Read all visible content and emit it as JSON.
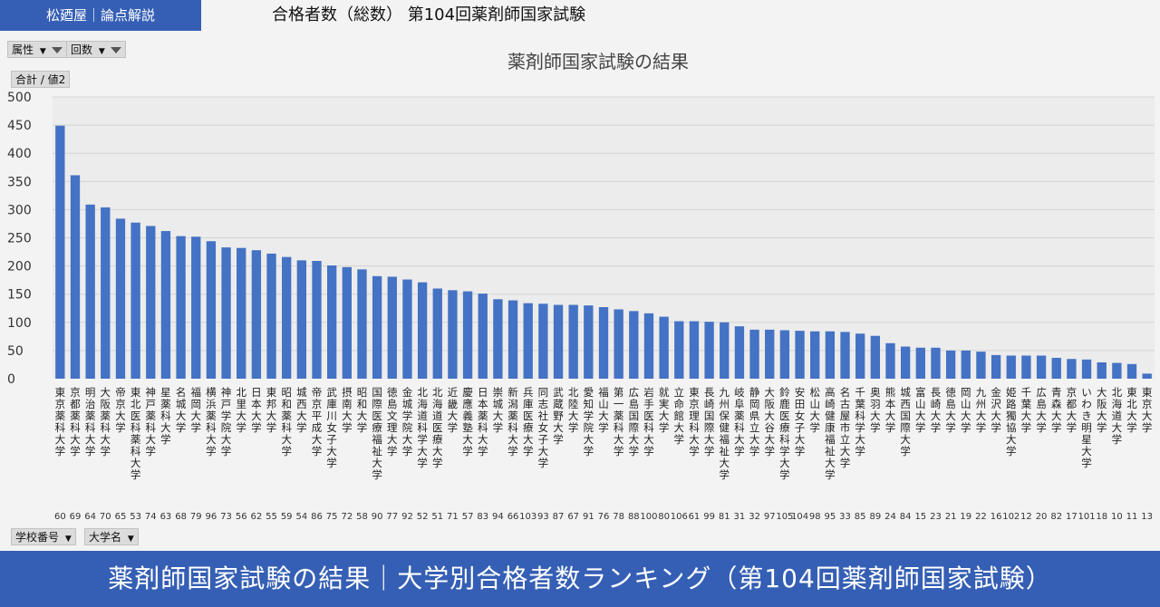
{
  "header": {
    "brand": "松廼屋｜論点解説",
    "title": "合格者数（総数） 第104回薬剤師国家試験"
  },
  "filters": {
    "attribute": "属性",
    "count": "回数",
    "sum_label": "合計 / 値2",
    "school_number": "学校番号",
    "university_name": "大学名"
  },
  "footer": {
    "text": "薬剤師国家試験の結果｜大学別合格者数ランキング（第104回薬剤師国家試験）"
  },
  "colors": {
    "bar": "#4472c4",
    "brand": "#355fb4"
  },
  "chart_data": {
    "type": "bar",
    "title": "薬剤師国家試験の結果",
    "ylim": [
      0,
      500
    ],
    "yticks": [
      0,
      50,
      100,
      150,
      200,
      250,
      300,
      350,
      400,
      450,
      500
    ],
    "grid": true,
    "categories": [
      "東京薬科大学",
      "京都薬科大学",
      "明治薬科大学",
      "大阪薬科大学",
      "帝京大学",
      "東北医科薬科大学",
      "神戸薬科大学",
      "星薬科大学",
      "名城大学",
      "福岡大学",
      "横浜薬科大学",
      "神戸学院大学",
      "北里大学",
      "日本大学",
      "東邦大学",
      "昭和薬科大学",
      "城西大学",
      "帝京平成大学",
      "武庫川女子大学",
      "摂南大学",
      "昭和大学",
      "国際医療福祉大学",
      "徳島文理大学",
      "金城学院大学",
      "北海道科学大学",
      "北海道医療大学",
      "近畿大学",
      "慶應義塾大学",
      "日本薬科大学",
      "崇城大学",
      "新潟薬科大学",
      "兵庫医療大学",
      "同志社女子大学",
      "武蔵野大学",
      "北陸大学",
      "愛知学院大学",
      "福山大学",
      "第一薬科大学",
      "広島国際大学",
      "岩手医科大学",
      "就実大学",
      "立命館大学",
      "東京理科大学",
      "長崎国際大学",
      "九州保健福祉大学",
      "岐阜薬科大学",
      "静岡県立大学",
      "大阪大谷大学",
      "鈴鹿医療科学大学",
      "安田女子大学",
      "松山大学",
      "高崎健康福祉大学",
      "名古屋市立大学",
      "千葉科学大学",
      "奥羽大学",
      "熊本大学",
      "城西国際大学",
      "富山大学",
      "長崎大学",
      "徳島大学",
      "岡山大学",
      "九州大学",
      "金沢大学",
      "姫路獨協大学",
      "千葉大学",
      "広島大学",
      "青森大学",
      "京都大学",
      "いわき明星大学",
      "大阪大学",
      "北海道大学",
      "東北大学",
      "東京大学"
    ],
    "codes": [
      "60",
      "69",
      "64",
      "70",
      "65",
      "53",
      "74",
      "63",
      "68",
      "79",
      "96",
      "73",
      "56",
      "62",
      "55",
      "59",
      "54",
      "86",
      "75",
      "72",
      "58",
      "90",
      "77",
      "92",
      "52",
      "51",
      "71",
      "57",
      "83",
      "94",
      "66",
      "103",
      "93",
      "87",
      "67",
      "91",
      "76",
      "78",
      "88",
      "100",
      "80",
      "106",
      "61",
      "99",
      "81",
      "31",
      "32",
      "97",
      "105",
      "104",
      "98",
      "95",
      "33",
      "85",
      "89",
      "24",
      "84",
      "15",
      "23",
      "21",
      "19",
      "22",
      "16",
      "102",
      "12",
      "20",
      "82",
      "17",
      "101",
      "18",
      "10",
      "11",
      "13"
    ],
    "values": [
      449,
      361,
      309,
      304,
      284,
      277,
      271,
      262,
      253,
      252,
      244,
      233,
      232,
      228,
      222,
      216,
      210,
      209,
      201,
      198,
      194,
      182,
      181,
      176,
      171,
      160,
      157,
      155,
      151,
      141,
      139,
      134,
      133,
      131,
      131,
      130,
      127,
      123,
      120,
      116,
      110,
      102,
      102,
      101,
      100,
      93,
      87,
      87,
      86,
      85,
      84,
      84,
      83,
      80,
      76,
      63,
      57,
      55,
      55,
      50,
      50,
      48,
      42,
      41,
      41,
      41,
      37,
      35,
      34,
      29,
      28,
      26,
      9
    ]
  }
}
